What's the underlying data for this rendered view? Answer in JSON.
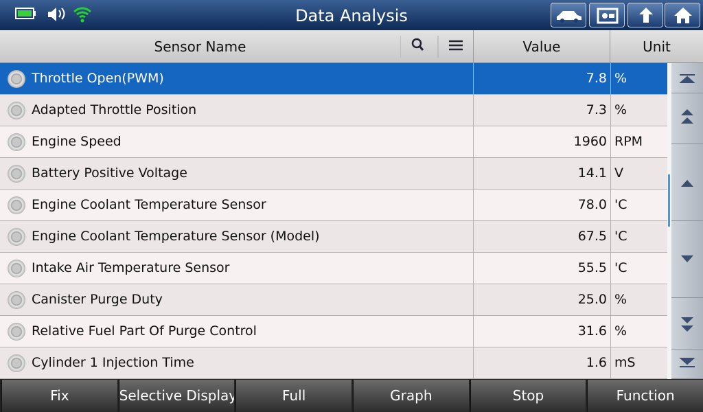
{
  "header": {
    "title": "Data Analysis"
  },
  "table": {
    "columns": [
      "Sensor Name",
      "Value",
      "Unit"
    ],
    "rows": [
      [
        "Throttle Open(PWM)",
        "7.8",
        "%"
      ],
      [
        "Adapted Throttle Position",
        "7.3",
        "%"
      ],
      [
        "Engine Speed",
        "1960",
        "RPM"
      ],
      [
        "Battery Positive Voltage",
        "14.1",
        "V"
      ],
      [
        "Engine Coolant Temperature Sensor",
        "78.0",
        "'C"
      ],
      [
        "Engine Coolant Temperature Sensor (Model)",
        "67.5",
        "'C"
      ],
      [
        "Intake Air Temperature Sensor",
        "55.5",
        "'C"
      ],
      [
        "Canister Purge Duty",
        "25.0",
        "%"
      ],
      [
        "Relative Fuel Part Of Purge Control",
        "31.6",
        "%"
      ],
      [
        "Cylinder 1 Injection Time",
        "1.6",
        "mS"
      ]
    ]
  },
  "footer": {
    "buttons": [
      "Fix",
      "Selective Display",
      "Full",
      "Graph",
      "Stop",
      "Function"
    ]
  }
}
